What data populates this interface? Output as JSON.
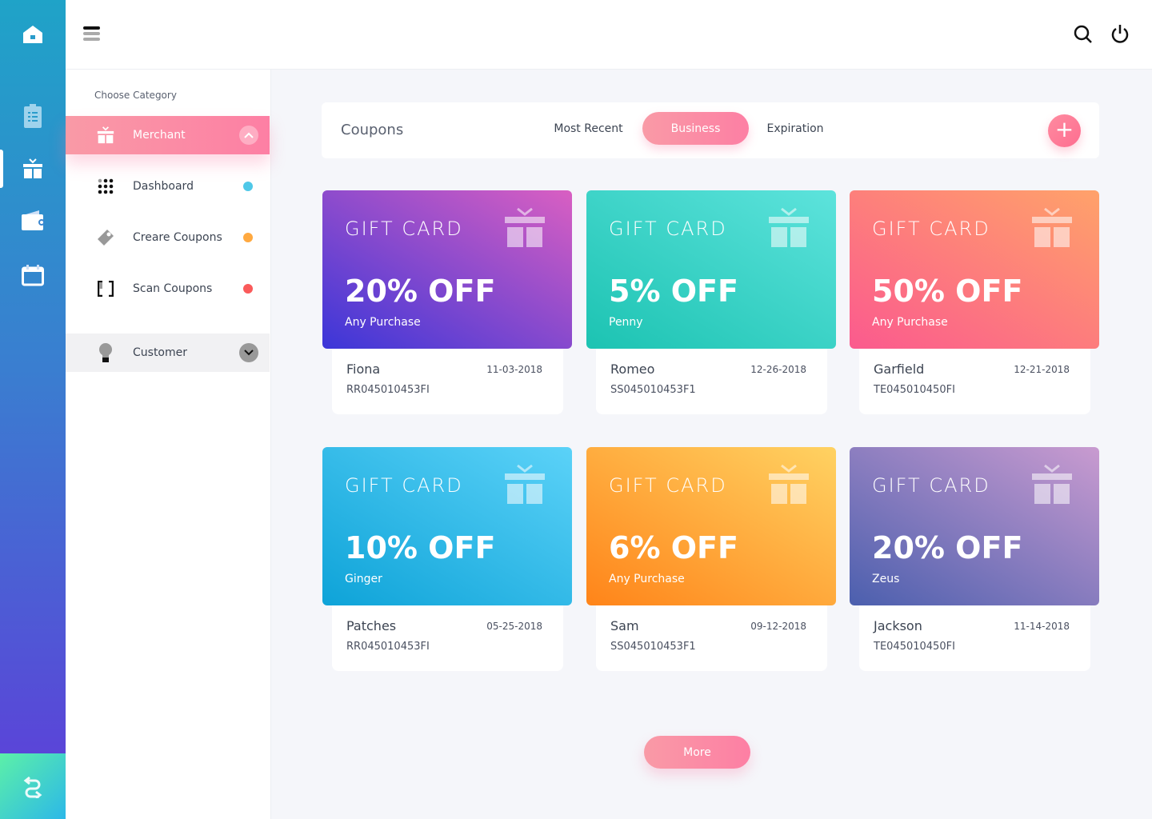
{
  "sidebar": {
    "choose_category": "Choose Category",
    "merchant": "Merchant",
    "items": [
      {
        "label": "Dashboard",
        "color": "#4fc8e8"
      },
      {
        "label": "Creare Coupons",
        "color": "#ffa940"
      },
      {
        "label": "Scan Coupons",
        "color": "#fa5a5a"
      }
    ],
    "customer": "Customer"
  },
  "panel": {
    "title": "Coupons",
    "tabs": [
      "Most Recent",
      "Business",
      "Expiration"
    ],
    "active_tab": "Business",
    "add_icon": "plus-icon"
  },
  "cards": [
    {
      "type": "GIFT CARD",
      "discount": "20% OFF",
      "scope": "Any Purchase",
      "name": "Fiona",
      "date": "11-03-2018",
      "code": "RR045010453FI",
      "gradient": [
        "#3b36d8",
        "#d95fc2"
      ]
    },
    {
      "type": "GIFT CARD",
      "discount": "5% OFF",
      "scope": "Penny",
      "name": "Romeo",
      "date": "12-26-2018",
      "code": "SS045010453F1",
      "gradient": [
        "#1cc3b2",
        "#5de3dc"
      ]
    },
    {
      "type": "GIFT CARD",
      "discount": "50% OFF",
      "scope": "Any Purchase",
      "name": "Garfield",
      "date": "12-21-2018",
      "code": "TE045010450FI",
      "gradient": [
        "#fb5a8e",
        "#ffa26a"
      ]
    },
    {
      "type": "GIFT CARD",
      "discount": "10% OFF",
      "scope": "Ginger",
      "name": "Patches",
      "date": "05-25-2018",
      "code": "RR045010453FI",
      "gradient": [
        "#0ea3d8",
        "#5bd2f8"
      ]
    },
    {
      "type": "GIFT CARD",
      "discount": "6% OFF",
      "scope": "Any Purchase",
      "name": "Sam",
      "date": "09-12-2018",
      "code": "SS045010453F1",
      "gradient": [
        "#ff8419",
        "#ffd262"
      ]
    },
    {
      "type": "GIFT CARD",
      "discount": "20% OFF",
      "scope": "Zeus",
      "name": "Jackson",
      "date": "11-14-2018",
      "code": "TE045010450FI",
      "gradient": [
        "#4b5fae",
        "#c99bd0"
      ]
    }
  ],
  "more": "More"
}
